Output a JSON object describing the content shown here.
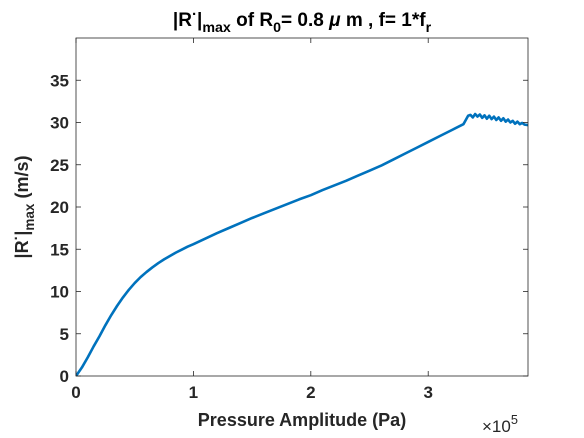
{
  "chart_data": {
    "type": "line",
    "title": {
      "parts": [
        {
          "text": "|R",
          "style": "normal"
        },
        {
          "text": "·",
          "style": "sup"
        },
        {
          "text": "|",
          "style": "normal"
        },
        {
          "text": "max",
          "style": "sub"
        },
        {
          "text": "  of R",
          "style": "normal"
        },
        {
          "text": "0",
          "style": "sub"
        },
        {
          "text": "= 0.8 ",
          "style": "normal"
        },
        {
          "text": "μ",
          "style": "italic"
        },
        {
          "text": " m , f= 1*f",
          "style": "normal"
        },
        {
          "text": "r",
          "style": "sub"
        }
      ]
    },
    "xlabel": "Pressure Amplitude (Pa)",
    "ylabel": {
      "parts": [
        {
          "text": "|R",
          "style": "normal"
        },
        {
          "text": "·",
          "style": "sup"
        },
        {
          "text": "|",
          "style": "normal"
        },
        {
          "text": "max",
          "style": "sub"
        },
        {
          "text": " (m/s)",
          "style": "normal"
        }
      ]
    },
    "x_exponent": {
      "base": "×10",
      "power": "5"
    },
    "x_scale": 100000,
    "xlim": [
      0,
      3.85
    ],
    "ylim": [
      0,
      40
    ],
    "xticks": [
      0,
      1,
      2,
      3
    ],
    "xtick_labels": [
      "0",
      "1",
      "2",
      "3"
    ],
    "yticks": [
      0,
      5,
      10,
      15,
      20,
      25,
      30,
      35
    ],
    "ytick_labels": [
      "0",
      "5",
      "10",
      "15",
      "20",
      "25",
      "30",
      "35"
    ],
    "grid": false,
    "box": true,
    "series": [
      {
        "color": "#0072BD",
        "x": [
          0,
          0.05,
          0.1,
          0.15,
          0.2,
          0.25,
          0.3,
          0.35,
          0.4,
          0.45,
          0.5,
          0.55,
          0.6,
          0.65,
          0.7,
          0.75,
          0.8,
          0.85,
          0.9,
          0.95,
          1.0,
          1.1,
          1.2,
          1.3,
          1.4,
          1.5,
          1.6,
          1.7,
          1.8,
          1.9,
          2.0,
          2.1,
          2.2,
          2.3,
          2.4,
          2.5,
          2.6,
          2.7,
          2.8,
          2.9,
          3.0,
          3.1,
          3.2,
          3.3,
          3.32,
          3.34,
          3.36,
          3.38,
          3.4,
          3.42,
          3.44,
          3.46,
          3.48,
          3.5,
          3.52,
          3.54,
          3.56,
          3.58,
          3.6,
          3.62,
          3.64,
          3.66,
          3.68,
          3.7,
          3.72,
          3.74,
          3.76,
          3.78,
          3.8,
          3.82,
          3.85
        ],
        "y": [
          0,
          1.0,
          2.2,
          3.5,
          4.7,
          6.0,
          7.2,
          8.3,
          9.3,
          10.2,
          11.0,
          11.7,
          12.3,
          12.85,
          13.35,
          13.8,
          14.2,
          14.6,
          14.95,
          15.3,
          15.6,
          16.25,
          16.9,
          17.5,
          18.1,
          18.7,
          19.25,
          19.8,
          20.35,
          20.9,
          21.4,
          22.0,
          22.55,
          23.1,
          23.7,
          24.3,
          24.9,
          25.6,
          26.3,
          27.0,
          27.7,
          28.4,
          29.1,
          29.8,
          30.3,
          30.8,
          30.9,
          30.6,
          31.0,
          30.7,
          30.95,
          30.55,
          30.85,
          30.45,
          30.8,
          30.4,
          30.7,
          30.3,
          30.6,
          30.2,
          30.5,
          30.1,
          30.35,
          30.0,
          30.2,
          29.85,
          30.1,
          29.8,
          29.95,
          29.75,
          29.7
        ]
      }
    ]
  }
}
